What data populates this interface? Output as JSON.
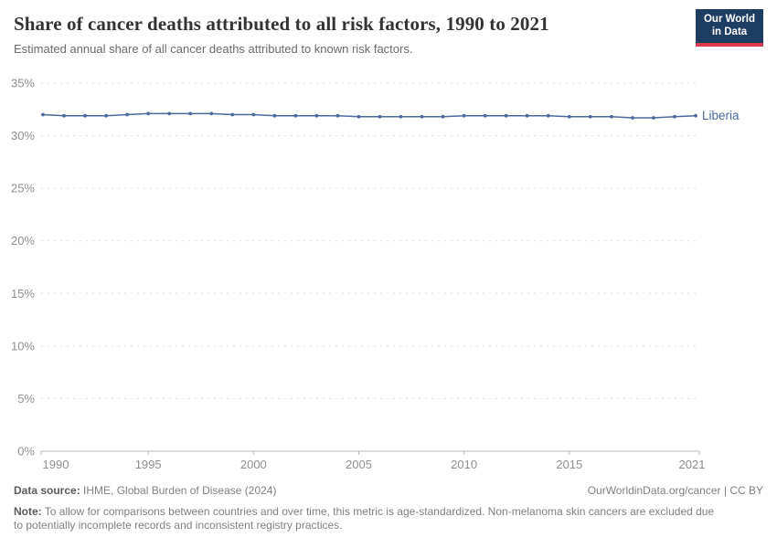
{
  "header": {
    "title": "Share of cancer deaths attributed to all risk factors, 1990 to 2021",
    "subtitle": "Estimated annual share of all cancer deaths attributed to known risk factors."
  },
  "logo": {
    "line1": "Our World",
    "line2": "in Data",
    "bg_color": "#1d3d63",
    "accent_color": "#d93a4a"
  },
  "chart_data": {
    "type": "line",
    "title": "Share of cancer deaths attributed to all risk factors, 1990 to 2021",
    "x": [
      1990,
      1991,
      1992,
      1993,
      1994,
      1995,
      1996,
      1997,
      1998,
      1999,
      2000,
      2001,
      2002,
      2003,
      2004,
      2005,
      2006,
      2007,
      2008,
      2009,
      2010,
      2011,
      2012,
      2013,
      2014,
      2015,
      2016,
      2017,
      2018,
      2019,
      2020,
      2021
    ],
    "series": [
      {
        "name": "Liberia",
        "color": "#4c6a9c",
        "values": [
          32.0,
          31.9,
          31.9,
          31.9,
          32.0,
          32.1,
          32.1,
          32.1,
          32.1,
          32.0,
          32.0,
          31.9,
          31.9,
          31.9,
          31.9,
          31.8,
          31.8,
          31.8,
          31.8,
          31.8,
          31.9,
          31.9,
          31.9,
          31.9,
          31.9,
          31.8,
          31.8,
          31.8,
          31.7,
          31.7,
          31.8,
          31.9
        ]
      }
    ],
    "ylim": [
      0,
      35
    ],
    "yticks": [
      0,
      5,
      10,
      15,
      20,
      25,
      30,
      35
    ],
    "ytick_suffix": "%",
    "xticks": [
      1990,
      1995,
      2000,
      2005,
      2010,
      2015,
      2021
    ],
    "grid": "horizontal-dashed",
    "legend": "inline-end-label",
    "colors": {
      "grid": "#dcdcdc",
      "axis": "#b8b8b8",
      "tick_label": "#8f8f8f"
    }
  },
  "footer": {
    "source_label": "Data source:",
    "source_text": " IHME, Global Burden of Disease (2024)",
    "rights": "OurWorldinData.org/cancer | CC BY",
    "note_label": "Note:",
    "note_text": " To allow for comparisons between countries and over time, this metric is age-standardized. Non-melanoma skin cancers are excluded due to potentially incomplete records and inconsistent registry practices."
  }
}
